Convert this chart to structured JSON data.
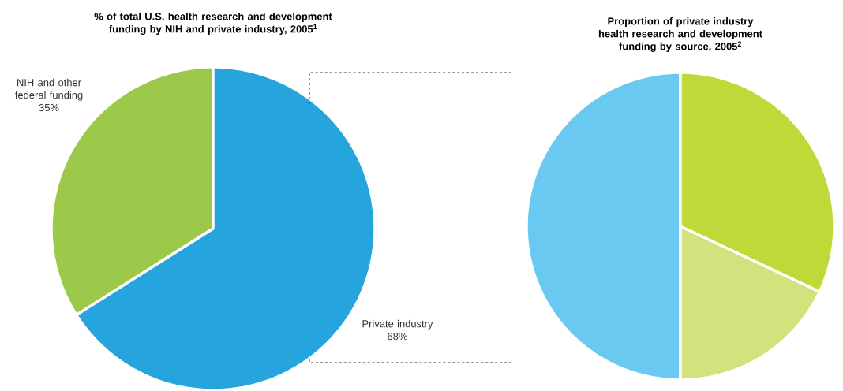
{
  "chart_data": [
    {
      "type": "pie",
      "title": "% of total U.S. health research and development funding by NIH and private industry, 2005$^{1}$",
      "categories": [
        "NIH and other federal funding",
        "Private industry"
      ],
      "values": [
        35,
        68
      ],
      "value_labels": [
        "35%",
        "68%"
      ],
      "colors": [
        "#9dc94b",
        "#25a4dd"
      ]
    },
    {
      "type": "pie",
      "title": "Proportion of private industry health research and development funding by source, 2005$^{2}$",
      "categories": [
        null,
        null,
        null
      ],
      "values": [
        50,
        18,
        32
      ],
      "colors": [
        "#6ac9f0",
        "#d4e27e",
        "#c0d838"
      ]
    }
  ]
}
